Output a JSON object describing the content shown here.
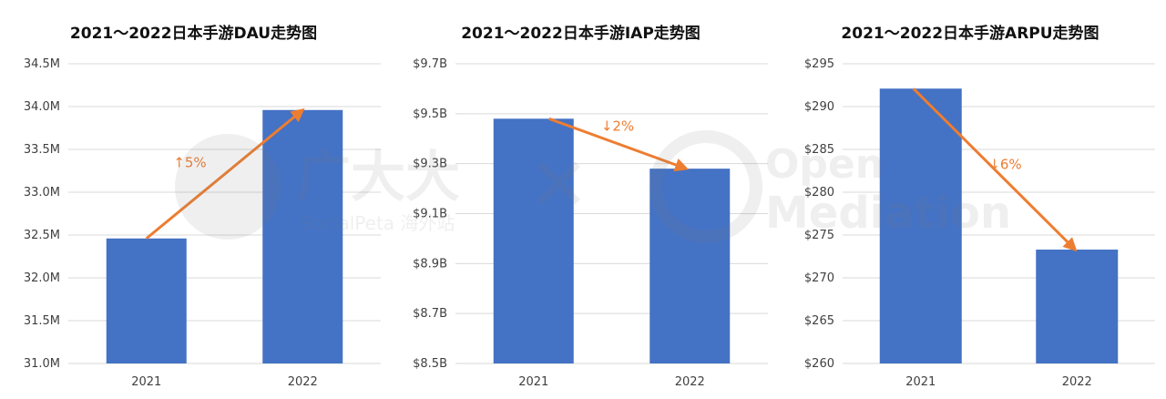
{
  "chart_data": [
    {
      "type": "bar",
      "title": "2021～2022日本手游DAU走势图",
      "categories": [
        "2021",
        "2022"
      ],
      "values": [
        32.46,
        33.96
      ],
      "ylim": [
        31.0,
        34.5
      ],
      "yticks": [
        31.0,
        31.5,
        32.0,
        32.5,
        33.0,
        33.5,
        34.0,
        34.5
      ],
      "ytick_labels": [
        "31.0M",
        "31.5M",
        "32.0M",
        "32.5M",
        "33.0M",
        "33.5M",
        "34.0M",
        "34.5M"
      ],
      "annotation": "↑5%",
      "grid": true
    },
    {
      "type": "bar",
      "title": "2021～2022日本手游IAP走势图",
      "categories": [
        "2021",
        "2022"
      ],
      "values": [
        9.48,
        9.28
      ],
      "ylim": [
        8.5,
        9.7
      ],
      "yticks": [
        8.5,
        8.7,
        8.9,
        9.1,
        9.3,
        9.5,
        9.7
      ],
      "ytick_labels": [
        "$8.5B",
        "$8.7B",
        "$8.9B",
        "$9.1B",
        "$9.3B",
        "$9.5B",
        "$9.7B"
      ],
      "annotation": "↓2%",
      "grid": true
    },
    {
      "type": "bar",
      "title": "2021～2022日本手游ARPU走势图",
      "categories": [
        "2021",
        "2022"
      ],
      "values": [
        292.1,
        273.3
      ],
      "ylim": [
        260,
        295
      ],
      "yticks": [
        260,
        265,
        270,
        275,
        280,
        285,
        290,
        295
      ],
      "ytick_labels": [
        "$260",
        "$265",
        "$270",
        "$275",
        "$280",
        "$285",
        "$290",
        "$295"
      ],
      "annotation": "↓6%",
      "grid": true
    }
  ],
  "colors": {
    "bar": "#4472c4",
    "arrow": "#ed7d31",
    "grid": "#d9d9d9",
    "axis_text": "#404040"
  },
  "watermark": {
    "icon": "socialpeta-logo-and-openmediation-logo",
    "text_left": "广大大",
    "text_left_sub": "SocialPeta 海外站",
    "text_right_top": "Open",
    "text_right": "Mediation"
  }
}
